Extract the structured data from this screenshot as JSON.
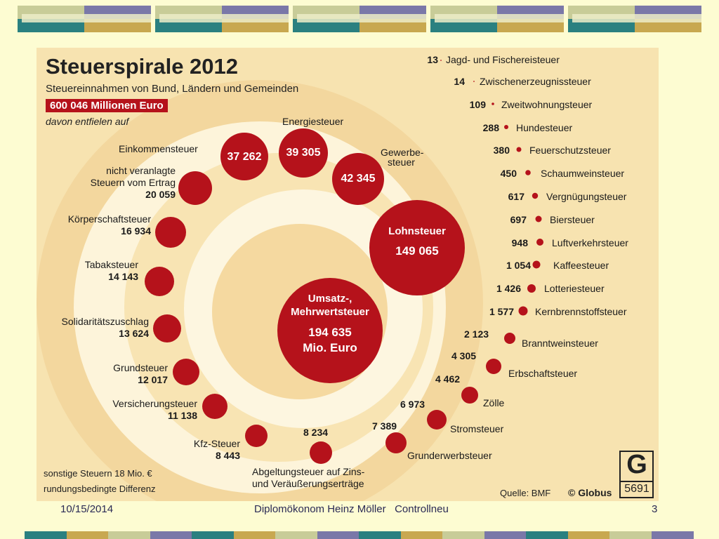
{
  "infographic": {
    "title": "Steuerspirale 2012",
    "subtitle": "Steuereinnahmen von Bund, Ländern und Gemeinden",
    "total": "600 046 Millionen Euro",
    "intro": "davon entfielen auf",
    "center": {
      "line1": "Umsatz-,",
      "line2": "Mehrwertsteuer",
      "value": "194 635",
      "unit": "Mio. Euro"
    },
    "lohnsteuer": {
      "name": "Lohnsteuer",
      "value": "149 065"
    },
    "energiesteuer": {
      "name": "Energiesteuer",
      "value": "39 305"
    },
    "gewerbesteuer": {
      "name1": "Gewerbe-",
      "name2": "steuer",
      "value": "42 345"
    },
    "einkommensteuer": {
      "name": "Einkommensteuer",
      "value": "37 262"
    },
    "nicht_veranlagte": {
      "line1": "nicht veranlagte",
      "line2": "Steuern vom Ertrag",
      "value": "20 059"
    },
    "koerperschaftsteuer": {
      "name": "Körperschaftsteuer",
      "value": "16 934"
    },
    "tabaksteuer": {
      "name": "Tabaksteuer",
      "value": "14 143"
    },
    "soli": {
      "name": "Solidaritätszuschlag",
      "value": "13 624"
    },
    "grundsteuer": {
      "name": "Grundsteuer",
      "value": "12 017"
    },
    "versicherungsteuer": {
      "name": "Versicherungsteuer",
      "value": "11 138"
    },
    "kfz": {
      "name": "Kfz-Steuer",
      "value": "8 443"
    },
    "abgeltung": {
      "value": "8 234",
      "line1": "Abgeltungsteuer auf Zins-",
      "line2": "und Veräußerungserträge"
    },
    "grunderwerb": {
      "value": "7 389",
      "name": "Grunderwerbsteuer"
    },
    "strom": {
      "value": "6 973",
      "name": "Stromsteuer"
    },
    "zoelle": {
      "value": "4 462",
      "name": "Zölle"
    },
    "erbschaft": {
      "value": "4 305",
      "name": "Erbschaftsteuer"
    },
    "branntwein": {
      "value": "2 123",
      "name": "Branntweinsteuer"
    },
    "small_taxes": [
      {
        "value": "13",
        "name": "Jagd- und Fischereisteuer"
      },
      {
        "value": "14",
        "name": "Zwischenerzeugnissteuer"
      },
      {
        "value": "109",
        "name": "Zweitwohnungsteuer"
      },
      {
        "value": "288",
        "name": "Hundesteuer"
      },
      {
        "value": "380",
        "name": "Feuerschutzsteuer"
      },
      {
        "value": "450",
        "name": "Schaumweinsteuer"
      },
      {
        "value": "617",
        "name": "Vergnügungsteuer"
      },
      {
        "value": "697",
        "name": "Biersteuer"
      },
      {
        "value": "948",
        "name": "Luftverkehrsteuer"
      },
      {
        "value": "1 054",
        "name": "Kaffeesteuer"
      },
      {
        "value": "1 426",
        "name": "Lotteriesteuer"
      },
      {
        "value": "1 577",
        "name": "Kernbrennstoffsteuer"
      }
    ],
    "note_line1": "sonstige Steuern 18 Mio. €",
    "note_line2": "rundungsbedingte Differenz",
    "source": "Quelle: BMF",
    "publisher": "© Globus",
    "logo_letter": "G",
    "logo_number": "5691",
    "accent_red": "#b5121b",
    "background": "#f7e3b0"
  },
  "footer": {
    "date": "10/15/2014",
    "center_text": "Diplomökonom Heinz Möller   Controllneu",
    "page": "3"
  }
}
